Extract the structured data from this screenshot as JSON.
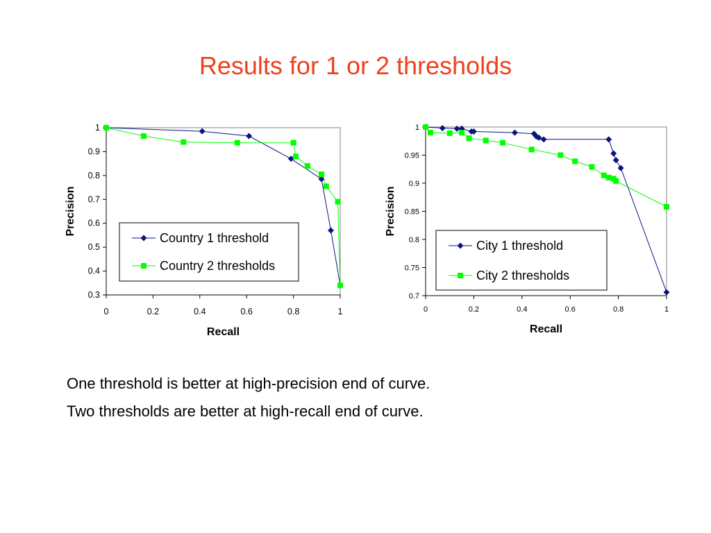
{
  "slide": {
    "title": "Results for 1 or 2 thresholds",
    "lines": [
      "One threshold is better at high-precision end of curve.",
      "Two thresholds are better at high-recall end of curve."
    ]
  },
  "colors": {
    "title": "#f0401c",
    "series_blue": "#0a1480",
    "series_green": "#00ff00"
  },
  "chart_data": [
    {
      "type": "line",
      "xlabel": "Recall",
      "ylabel": "Precision",
      "xlim": [
        0,
        1
      ],
      "ylim": [
        0.3,
        1
      ],
      "xticks": [
        0,
        0.2,
        0.4,
        0.6,
        0.8,
        1
      ],
      "xtick_labels": [
        "0",
        "0.2",
        "0.4",
        "0.6",
        "0.8",
        "1"
      ],
      "yticks": [
        0.3,
        0.4,
        0.5,
        0.6,
        0.7,
        0.8,
        0.9,
        1
      ],
      "ytick_labels": [
        "0.3",
        "0.4",
        "0.5",
        "0.6",
        "0.7",
        "0.8",
        "0.9",
        "1"
      ],
      "grid": false,
      "legend_position": "center",
      "series": [
        {
          "name": "Country 1 threshold",
          "marker": "diamond",
          "color": "#0a1480",
          "x": [
            0,
            0.41,
            0.61,
            0.79,
            0.92,
            0.96,
            1.0
          ],
          "y": [
            1.0,
            0.985,
            0.965,
            0.87,
            0.785,
            0.57,
            0.34
          ]
        },
        {
          "name": "Country 2 thresholds",
          "marker": "square",
          "color": "#00ff00",
          "x": [
            0,
            0.16,
            0.33,
            0.56,
            0.8,
            0.81,
            0.86,
            0.92,
            0.94,
            0.99,
            1.0
          ],
          "y": [
            1.0,
            0.965,
            0.94,
            0.937,
            0.937,
            0.88,
            0.84,
            0.805,
            0.755,
            0.69,
            0.34
          ]
        }
      ]
    },
    {
      "type": "line",
      "xlabel": "Recall",
      "ylabel": "Precision",
      "xlim": [
        0,
        1
      ],
      "ylim": [
        0.7,
        1
      ],
      "xticks": [
        0,
        0.2,
        0.4,
        0.6,
        0.8,
        1
      ],
      "xtick_labels": [
        "0",
        "0.2",
        "0.4",
        "0.6",
        "0.8",
        "1"
      ],
      "yticks": [
        0.7,
        0.75,
        0.8,
        0.85,
        0.9,
        0.95,
        1
      ],
      "ytick_labels": [
        "0.7",
        "0.75",
        "0.8",
        "0.85",
        "0.9",
        "0.95",
        "1"
      ],
      "grid": false,
      "legend_position": "center-right",
      "series": [
        {
          "name": "City 1 threshold",
          "marker": "diamond",
          "color": "#0a1480",
          "x": [
            0,
            0.07,
            0.13,
            0.15,
            0.19,
            0.2,
            0.37,
            0.45,
            0.46,
            0.47,
            0.49,
            0.76,
            0.78,
            0.79,
            0.81,
            1.0
          ],
          "y": [
            1.0,
            0.998,
            0.997,
            0.997,
            0.992,
            0.992,
            0.99,
            0.988,
            0.983,
            0.981,
            0.978,
            0.978,
            0.953,
            0.941,
            0.927,
            0.706
          ]
        },
        {
          "name": "City 2 thresholds",
          "marker": "square",
          "color": "#00ff00",
          "x": [
            0,
            0.02,
            0.1,
            0.15,
            0.18,
            0.25,
            0.32,
            0.44,
            0.56,
            0.62,
            0.69,
            0.74,
            0.76,
            0.78,
            0.79,
            1.0
          ],
          "y": [
            1.0,
            0.99,
            0.989,
            0.99,
            0.98,
            0.976,
            0.972,
            0.96,
            0.95,
            0.939,
            0.929,
            0.914,
            0.91,
            0.908,
            0.904,
            0.858
          ]
        }
      ]
    }
  ]
}
